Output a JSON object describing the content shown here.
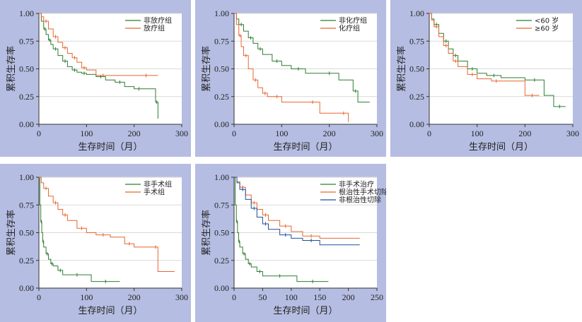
{
  "chart_data": [
    {
      "type": "line",
      "xlabel": "生存时间（月）",
      "ylabel": "累积生存率",
      "xlim": [
        0,
        300
      ],
      "ylim": [
        0,
        1
      ],
      "xticks": [
        0,
        100,
        200,
        300
      ],
      "yticks": [
        "0.00",
        "0.25",
        "0.50",
        "0.75",
        "1.00"
      ],
      "legend": "top-right",
      "series": [
        {
          "name": "非放疗组",
          "color": "#2e7d32",
          "x": [
            0,
            5,
            10,
            15,
            20,
            25,
            30,
            40,
            50,
            60,
            70,
            80,
            90,
            100,
            120,
            140,
            160,
            180,
            200,
            220,
            245,
            250
          ],
          "y": [
            1.0,
            0.93,
            0.86,
            0.81,
            0.76,
            0.72,
            0.68,
            0.62,
            0.57,
            0.52,
            0.49,
            0.47,
            0.46,
            0.45,
            0.43,
            0.4,
            0.38,
            0.34,
            0.32,
            0.32,
            0.2,
            0.05
          ]
        },
        {
          "name": "放疗组",
          "color": "#e8662f",
          "x": [
            0,
            5,
            10,
            20,
            30,
            40,
            50,
            60,
            70,
            80,
            90,
            100,
            120,
            150,
            200,
            250
          ],
          "y": [
            1.0,
            0.97,
            0.93,
            0.86,
            0.79,
            0.74,
            0.69,
            0.64,
            0.6,
            0.56,
            0.51,
            0.49,
            0.44,
            0.44,
            0.44,
            0.44
          ]
        }
      ]
    },
    {
      "type": "line",
      "xlabel": "生存时间（月）",
      "ylabel": "累积生存率",
      "xlim": [
        0,
        300
      ],
      "ylim": [
        0,
        1
      ],
      "xticks": [
        0,
        100,
        200,
        300
      ],
      "yticks": [
        "0.00",
        "0.25",
        "0.50",
        "0.75",
        "1.00"
      ],
      "legend": "top-right",
      "series": [
        {
          "name": "非化疗组",
          "color": "#2e7d32",
          "x": [
            0,
            5,
            10,
            20,
            30,
            40,
            50,
            60,
            80,
            100,
            120,
            150,
            180,
            220,
            250,
            260,
            285
          ],
          "y": [
            1.0,
            0.95,
            0.9,
            0.84,
            0.78,
            0.73,
            0.68,
            0.63,
            0.57,
            0.53,
            0.5,
            0.46,
            0.46,
            0.4,
            0.3,
            0.2,
            0.2
          ]
        },
        {
          "name": "化疗组",
          "color": "#e8662f",
          "x": [
            0,
            5,
            10,
            15,
            20,
            30,
            40,
            50,
            60,
            70,
            80,
            100,
            150,
            180,
            220,
            240
          ],
          "y": [
            1.0,
            0.9,
            0.8,
            0.7,
            0.62,
            0.5,
            0.4,
            0.33,
            0.28,
            0.25,
            0.25,
            0.2,
            0.2,
            0.1,
            0.1,
            0.02
          ]
        }
      ]
    },
    {
      "type": "line",
      "xlabel": "生存时间（月）",
      "ylabel": "累积生存率",
      "xlim": [
        0,
        300
      ],
      "ylim": [
        0,
        1
      ],
      "xticks": [
        0,
        100,
        200,
        300
      ],
      "yticks": [
        "0.00",
        "0.25",
        "0.50",
        "0.75",
        "1.00"
      ],
      "legend": "top-right",
      "series": [
        {
          "name": "<60 岁",
          "color": "#2e7d32",
          "x": [
            0,
            5,
            10,
            20,
            30,
            40,
            50,
            60,
            80,
            100,
            120,
            150,
            200,
            240,
            260,
            285
          ],
          "y": [
            1.0,
            0.95,
            0.9,
            0.82,
            0.75,
            0.68,
            0.62,
            0.57,
            0.5,
            0.46,
            0.44,
            0.42,
            0.4,
            0.26,
            0.16,
            0.16
          ]
        },
        {
          "name": "≥60 岁",
          "color": "#e8662f",
          "x": [
            0,
            5,
            10,
            20,
            30,
            40,
            50,
            60,
            80,
            100,
            130,
            150,
            200,
            230
          ],
          "y": [
            1.0,
            0.94,
            0.88,
            0.79,
            0.71,
            0.64,
            0.57,
            0.52,
            0.45,
            0.41,
            0.39,
            0.39,
            0.26,
            0.26
          ]
        }
      ]
    },
    {
      "type": "line",
      "xlabel": "生存时间（月）",
      "ylabel": "累积生存率",
      "xlim": [
        0,
        300
      ],
      "ylim": [
        0,
        1
      ],
      "xticks": [
        0,
        100,
        200,
        300
      ],
      "yticks": [
        "0.00",
        "0.25",
        "0.50",
        "0.75",
        "1.00"
      ],
      "legend": "top-right",
      "series": [
        {
          "name": "非手术组",
          "color": "#2e7d32",
          "x": [
            0,
            2,
            4,
            6,
            8,
            10,
            15,
            20,
            25,
            30,
            40,
            50,
            60,
            100,
            110,
            170
          ],
          "y": [
            1.0,
            0.75,
            0.6,
            0.5,
            0.42,
            0.37,
            0.31,
            0.26,
            0.22,
            0.2,
            0.16,
            0.12,
            0.12,
            0.12,
            0.06,
            0.06
          ]
        },
        {
          "name": "手术组",
          "color": "#e8662f",
          "x": [
            0,
            5,
            10,
            20,
            30,
            40,
            50,
            60,
            80,
            100,
            120,
            150,
            180,
            200,
            240,
            250,
            285
          ],
          "y": [
            1.0,
            0.95,
            0.9,
            0.83,
            0.77,
            0.71,
            0.66,
            0.61,
            0.54,
            0.5,
            0.48,
            0.46,
            0.4,
            0.37,
            0.37,
            0.15,
            0.15
          ]
        }
      ]
    },
    {
      "type": "line",
      "xlabel": "生存时间（月）",
      "ylabel": "累积生存率",
      "xlim": [
        0,
        250
      ],
      "ylim": [
        0,
        1
      ],
      "xticks": [
        0,
        50,
        100,
        150,
        200,
        250
      ],
      "yticks": [
        "0.00",
        "0.25",
        "0.50",
        "0.75",
        "1.00"
      ],
      "legend": "top-right",
      "series": [
        {
          "name": "非手术治疗",
          "color": "#2e7d32",
          "x": [
            0,
            2,
            4,
            6,
            8,
            10,
            15,
            20,
            25,
            30,
            40,
            50,
            60,
            100,
            110,
            165
          ],
          "y": [
            1.0,
            0.75,
            0.6,
            0.5,
            0.42,
            0.37,
            0.31,
            0.26,
            0.22,
            0.19,
            0.15,
            0.11,
            0.11,
            0.11,
            0.06,
            0.06
          ]
        },
        {
          "name": "根治性手术切除",
          "color": "#e8662f",
          "x": [
            0,
            5,
            10,
            20,
            30,
            40,
            50,
            60,
            80,
            100,
            120,
            150,
            220
          ],
          "y": [
            1.0,
            0.96,
            0.91,
            0.84,
            0.77,
            0.71,
            0.66,
            0.61,
            0.56,
            0.51,
            0.47,
            0.45,
            0.45
          ]
        },
        {
          "name": "非根治性切除",
          "color": "#1f4e9a",
          "x": [
            0,
            5,
            10,
            20,
            30,
            40,
            50,
            60,
            80,
            100,
            120,
            150,
            220
          ],
          "y": [
            1.0,
            0.95,
            0.89,
            0.8,
            0.72,
            0.64,
            0.58,
            0.53,
            0.48,
            0.45,
            0.43,
            0.39,
            0.39
          ]
        }
      ]
    }
  ]
}
